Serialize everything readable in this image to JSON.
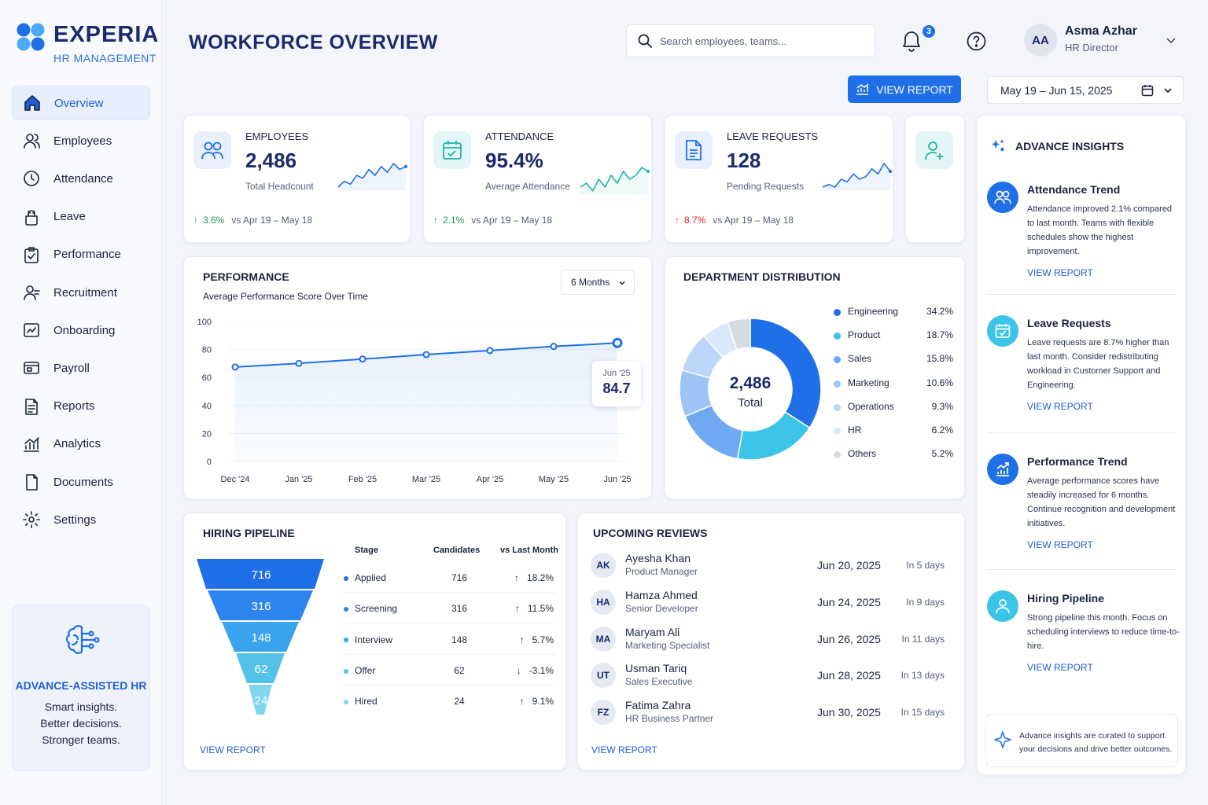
{
  "brand": {
    "name": "EXPERIA",
    "subtitle": "HR MANAGEMENT"
  },
  "nav": [
    {
      "label": "Overview",
      "icon": "home-icon",
      "active": true
    },
    {
      "label": "Employees",
      "icon": "users-icon"
    },
    {
      "label": "Attendance",
      "icon": "clock-icon"
    },
    {
      "label": "Leave",
      "icon": "leave-icon"
    },
    {
      "label": "Performance",
      "icon": "clipboard-check-icon"
    },
    {
      "label": "Recruitment",
      "icon": "recruit-icon"
    },
    {
      "label": "Onboarding",
      "icon": "onboarding-icon"
    },
    {
      "label": "Payroll",
      "icon": "payroll-icon"
    },
    {
      "label": "Reports",
      "icon": "report-icon"
    },
    {
      "label": "Analytics",
      "icon": "analytics-icon"
    },
    {
      "label": "Documents",
      "icon": "document-icon"
    },
    {
      "label": "Settings",
      "icon": "settings-icon"
    }
  ],
  "promo": {
    "title": "ADVANCE-ASSISTED HR",
    "line1": "Smart insights.",
    "line2": "Better decisions.",
    "line3": "Stronger teams."
  },
  "header": {
    "title": "WORKFORCE OVERVIEW",
    "search_placeholder": "Search employees, teams...",
    "notifications": "3",
    "user_initials": "AA",
    "user_name": "Asma Azhar",
    "user_role": "HR Director",
    "view_report": "VIEW REPORT",
    "date_range": "May 19 – Jun 15, 2025"
  },
  "kpis": [
    {
      "label": "EMPLOYEES",
      "value": "2,486",
      "sub": "Total Headcount",
      "change": "3.6%",
      "direction": "up",
      "period": "vs Apr 19 – May 18",
      "spark": [
        3,
        5,
        4,
        7,
        6,
        9,
        7,
        10,
        8,
        11,
        9,
        10
      ]
    },
    {
      "label": "ATTENDANCE",
      "value": "95.4%",
      "sub": "Average Attendance",
      "change": "2.1%",
      "direction": "up",
      "period": "vs Apr 19 – May 18",
      "spark": [
        4,
        5,
        3,
        6,
        4,
        7,
        5,
        8,
        6,
        7,
        9,
        8
      ]
    },
    {
      "label": "LEAVE REQUESTS",
      "value": "128",
      "sub": "Pending Requests",
      "change": "8.7%",
      "direction": "up",
      "period": "vs Apr 19 – May 18",
      "spark": [
        2,
        3,
        2,
        5,
        4,
        7,
        5,
        6,
        9,
        7,
        11,
        8
      ]
    }
  ],
  "performance": {
    "title": "PERFORMANCE",
    "subtitle": "Average Performance Score Over Time",
    "range": "6 Months",
    "tooltip_label": "Jun '25",
    "tooltip_value": "84.7"
  },
  "chart_data": {
    "type": "line",
    "title": "Average Performance Score Over Time",
    "categories": [
      "Dec '24",
      "Jan '25",
      "Feb '25",
      "Mar '25",
      "Apr '25",
      "May '25",
      "Jun '25"
    ],
    "values": [
      67.5,
      70.1,
      73.2,
      76.4,
      79.3,
      82.2,
      84.7
    ],
    "y_ticks": [
      0,
      20,
      40,
      60,
      80,
      100
    ],
    "ylim": [
      0,
      100
    ]
  },
  "department": {
    "title": "DEPARTMENT DISTRIBUTION",
    "total": "2,486",
    "total_label": "Total",
    "items": [
      {
        "name": "Engineering",
        "pct": "34.2%",
        "value": 34.2,
        "color": "#1f6fe8"
      },
      {
        "name": "Product",
        "pct": "18.7%",
        "value": 18.7,
        "color": "#3bc4e6"
      },
      {
        "name": "Sales",
        "pct": "15.8%",
        "value": 15.8,
        "color": "#6fa9f2"
      },
      {
        "name": "Marketing",
        "pct": "10.6%",
        "value": 10.6,
        "color": "#9cc4f7"
      },
      {
        "name": "Operations",
        "pct": "9.3%",
        "value": 9.3,
        "color": "#bcd6fa"
      },
      {
        "name": "HR",
        "pct": "6.2%",
        "value": 6.2,
        "color": "#dae8fc"
      },
      {
        "name": "Others",
        "pct": "5.2%",
        "value": 5.2,
        "color": "#d6dbe3"
      }
    ]
  },
  "hiring": {
    "title": "HIRING PIPELINE",
    "col_stage": "Stage",
    "col_candidates": "Candidates",
    "col_change": "vs Last Month",
    "rows": [
      {
        "stage": "Applied",
        "count": "716",
        "change": "18.2%",
        "direction": "up",
        "color": "#1f6fe8"
      },
      {
        "stage": "Screening",
        "count": "316",
        "change": "11.5%",
        "direction": "up",
        "color": "#2c84ee"
      },
      {
        "stage": "Interview",
        "count": "148",
        "change": "5.7%",
        "direction": "up",
        "color": "#3aa3ee"
      },
      {
        "stage": "Offer",
        "count": "62",
        "change": "-3.1%",
        "direction": "down",
        "color": "#53c1e8"
      },
      {
        "stage": "Hired",
        "count": "24",
        "change": "9.1%",
        "direction": "up",
        "color": "#7fd6ee"
      }
    ],
    "link": "VIEW REPORT"
  },
  "reviews": {
    "title": "UPCOMING REVIEWS",
    "rows": [
      {
        "initials": "AK",
        "name": "Ayesha Khan",
        "role": "Product Manager",
        "date": "Jun 20, 2025",
        "in": "In 5 days"
      },
      {
        "initials": "HA",
        "name": "Hamza Ahmed",
        "role": "Senior Developer",
        "date": "Jun 24, 2025",
        "in": "In 9 days"
      },
      {
        "initials": "MA",
        "name": "Maryam Ali",
        "role": "Marketing Specialist",
        "date": "Jun 26, 2025",
        "in": "In 11 days"
      },
      {
        "initials": "UT",
        "name": "Usman Tariq",
        "role": "Sales Executive",
        "date": "Jun 28, 2025",
        "in": "In 13 days"
      },
      {
        "initials": "FZ",
        "name": "Fatima Zahra",
        "role": "HR Business Partner",
        "date": "Jun 30, 2025",
        "in": "In 15 days"
      }
    ],
    "link": "VIEW REPORT"
  },
  "insights": {
    "title": "ADVANCE INSIGHTS",
    "items": [
      {
        "title": "Attendance Trend",
        "text": "Attendance improved 2.1% compared to last month. Teams with flexible schedules show the highest improvement.",
        "link": "VIEW REPORT",
        "icon": "team-icon"
      },
      {
        "title": "Leave Requests",
        "text": "Leave requests are 8.7% higher than last month. Consider redistributing workload in Customer Support and Engineering.",
        "link": "VIEW REPORT",
        "icon": "calendar-check-icon"
      },
      {
        "title": "Performance Trend",
        "text": "Average performance scores have steadily increased for 6 months. Continue recognition and development initiatives.",
        "link": "VIEW REPORT",
        "icon": "trend-up-icon"
      },
      {
        "title": "Hiring Pipeline",
        "text": "Strong pipeline this month. Focus on scheduling interviews to reduce time-to-hire.",
        "link": "VIEW REPORT",
        "icon": "person-icon"
      }
    ],
    "footer": "Advance insights are curated to support your decisions and drive better outcomes."
  }
}
